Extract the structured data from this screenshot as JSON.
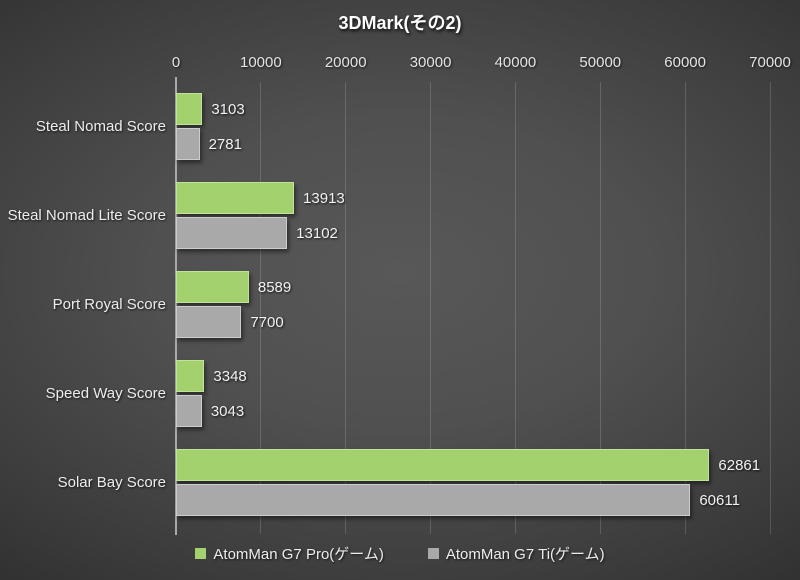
{
  "chart_data": {
    "type": "bar",
    "orientation": "horizontal",
    "title": "3DMark(その2)",
    "categories": [
      "Steal Nomad Score",
      "Steal Nomad Lite Score",
      "Port Royal Score",
      "Speed Way Score",
      "Solar Bay Score"
    ],
    "series": [
      {
        "name": "AtomMan G7 Pro(ゲーム)",
        "color": "#a2d16e",
        "border": "#c0e299",
        "values": [
          3103,
          13913,
          8589,
          3348,
          62861
        ]
      },
      {
        "name": "AtomMan G7 Ti(ゲーム)",
        "color": "#a9a9a9",
        "border": "#cdcdcd",
        "values": [
          2781,
          13102,
          7700,
          3043,
          60611
        ]
      }
    ],
    "x_axis": {
      "min": 0,
      "max": 70000,
      "tick_interval": 10000,
      "tick_labels": [
        "0",
        "10000",
        "20000",
        "30000",
        "40000",
        "50000",
        "60000",
        "70000"
      ]
    },
    "grid": true,
    "legend_position": "bottom"
  },
  "colors": {
    "background_center": "#585858",
    "background_edge": "#1e1e1e",
    "gridline": "rgba(255,255,255,0.16)",
    "axis_line": "#a9a9a9",
    "text": "#f0f0f0"
  }
}
